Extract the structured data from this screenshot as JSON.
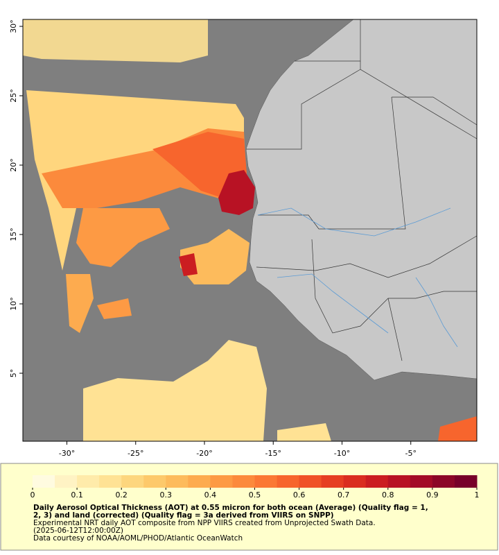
{
  "map": {
    "lon_range": [
      -33.2,
      -0.2
    ],
    "lat_range": [
      0.1,
      30.5
    ],
    "lon_ticks": [
      {
        "value": -30,
        "label": "-30°"
      },
      {
        "value": -25,
        "label": "-25°"
      },
      {
        "value": -20,
        "label": "-20°"
      },
      {
        "value": -15,
        "label": "-15°"
      },
      {
        "value": -10,
        "label": "-10°"
      },
      {
        "value": -5,
        "label": "-5°"
      }
    ],
    "lat_ticks": [
      {
        "value": 30,
        "label": "30°"
      },
      {
        "value": 25,
        "label": "25°"
      },
      {
        "value": 20,
        "label": "20°"
      },
      {
        "value": 15,
        "label": "15°"
      },
      {
        "value": 10,
        "label": "10°"
      },
      {
        "value": 5,
        "label": "5°"
      }
    ]
  },
  "colorbar": {
    "range": [
      0,
      1
    ],
    "ticks": [
      0,
      0.1,
      0.2,
      0.3,
      0.4,
      0.5,
      0.6,
      0.7,
      0.8,
      0.9,
      1
    ],
    "colors": [
      "#fffbe0",
      "#fff3c4",
      "#ffebaa",
      "#ffe294",
      "#fdd67e",
      "#fdc96b",
      "#fdbb5c",
      "#fdab4f",
      "#fd9a44",
      "#fc8a3c",
      "#fb7834",
      "#f7652d",
      "#f05127",
      "#e63e22",
      "#da2d20",
      "#cb1d21",
      "#b81224",
      "#a30b27",
      "#8c0628",
      "#78002a"
    ]
  },
  "caption": {
    "title_lines": [
      "Daily Aerosol Optical Thickness (AOT) at 0.55 micron for both ocean (Average) (Quality flag = 1,",
      "2, 3) and land (corrected) (Quality flag = 3a derived from VIIRS on SNPP)"
    ],
    "note_lines": [
      "Experimental NRT daily AOT composite from NPP VIIRS created from Unprojected Swath Data.",
      "(2025-06-12T12:00:00Z)",
      "Data courtesy of NOAA/AOML/PHOD/Atlantic OceanWatch"
    ]
  }
}
